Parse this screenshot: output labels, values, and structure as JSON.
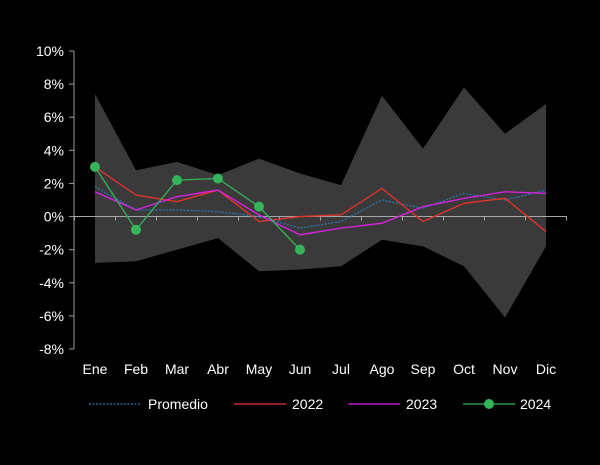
{
  "chart_data": {
    "type": "line",
    "categories": [
      "Ene",
      "Feb",
      "Mar",
      "Abr",
      "May",
      "Jun",
      "Jul",
      "Ago",
      "Sep",
      "Oct",
      "Nov",
      "Dic"
    ],
    "ylim": [
      -8,
      10
    ],
    "yticks": [
      -8,
      -6,
      -4,
      -2,
      0,
      2,
      4,
      6,
      8,
      10
    ],
    "ytick_labels": [
      "-8%",
      "-6%",
      "-4%",
      "-2%",
      "0%",
      "2%",
      "4%",
      "6%",
      "8%",
      "10%"
    ],
    "grid": false,
    "legend_position": "bottom",
    "range_band": {
      "upper": [
        7.4,
        2.8,
        3.3,
        2.5,
        3.5,
        2.6,
        1.9,
        7.3,
        4.1,
        7.8,
        5.0,
        6.8
      ],
      "lower": [
        -2.8,
        -2.7,
        -2.0,
        -1.3,
        -3.3,
        -3.2,
        -3.0,
        -1.4,
        -1.8,
        -3.0,
        -6.1,
        -1.8
      ],
      "color": "#3a3a3a"
    },
    "series": [
      {
        "name": "Promedio",
        "values": [
          1.8,
          0.4,
          0.4,
          0.3,
          0.0,
          -0.7,
          -0.3,
          1.0,
          0.5,
          1.4,
          1.0,
          1.6
        ],
        "color": "#2e75b6",
        "style": "dotted",
        "marker": false
      },
      {
        "name": "2022",
        "values": [
          3.0,
          1.3,
          0.9,
          1.6,
          -0.3,
          0.0,
          0.1,
          1.7,
          -0.3,
          0.8,
          1.1,
          -0.9
        ],
        "color": "#e8332a",
        "style": "solid",
        "marker": false
      },
      {
        "name": "2023",
        "values": [
          1.5,
          0.4,
          1.2,
          1.6,
          0.1,
          -1.1,
          -0.7,
          -0.4,
          0.6,
          1.1,
          1.5,
          1.4
        ],
        "color": "#e020e8",
        "style": "solid",
        "marker": false
      },
      {
        "name": "2024",
        "values": [
          3.0,
          -0.8,
          2.2,
          2.3,
          0.6,
          -2.0,
          null,
          null,
          null,
          null,
          null,
          null
        ],
        "color": "#35b45a",
        "style": "solid",
        "marker": true
      }
    ]
  }
}
